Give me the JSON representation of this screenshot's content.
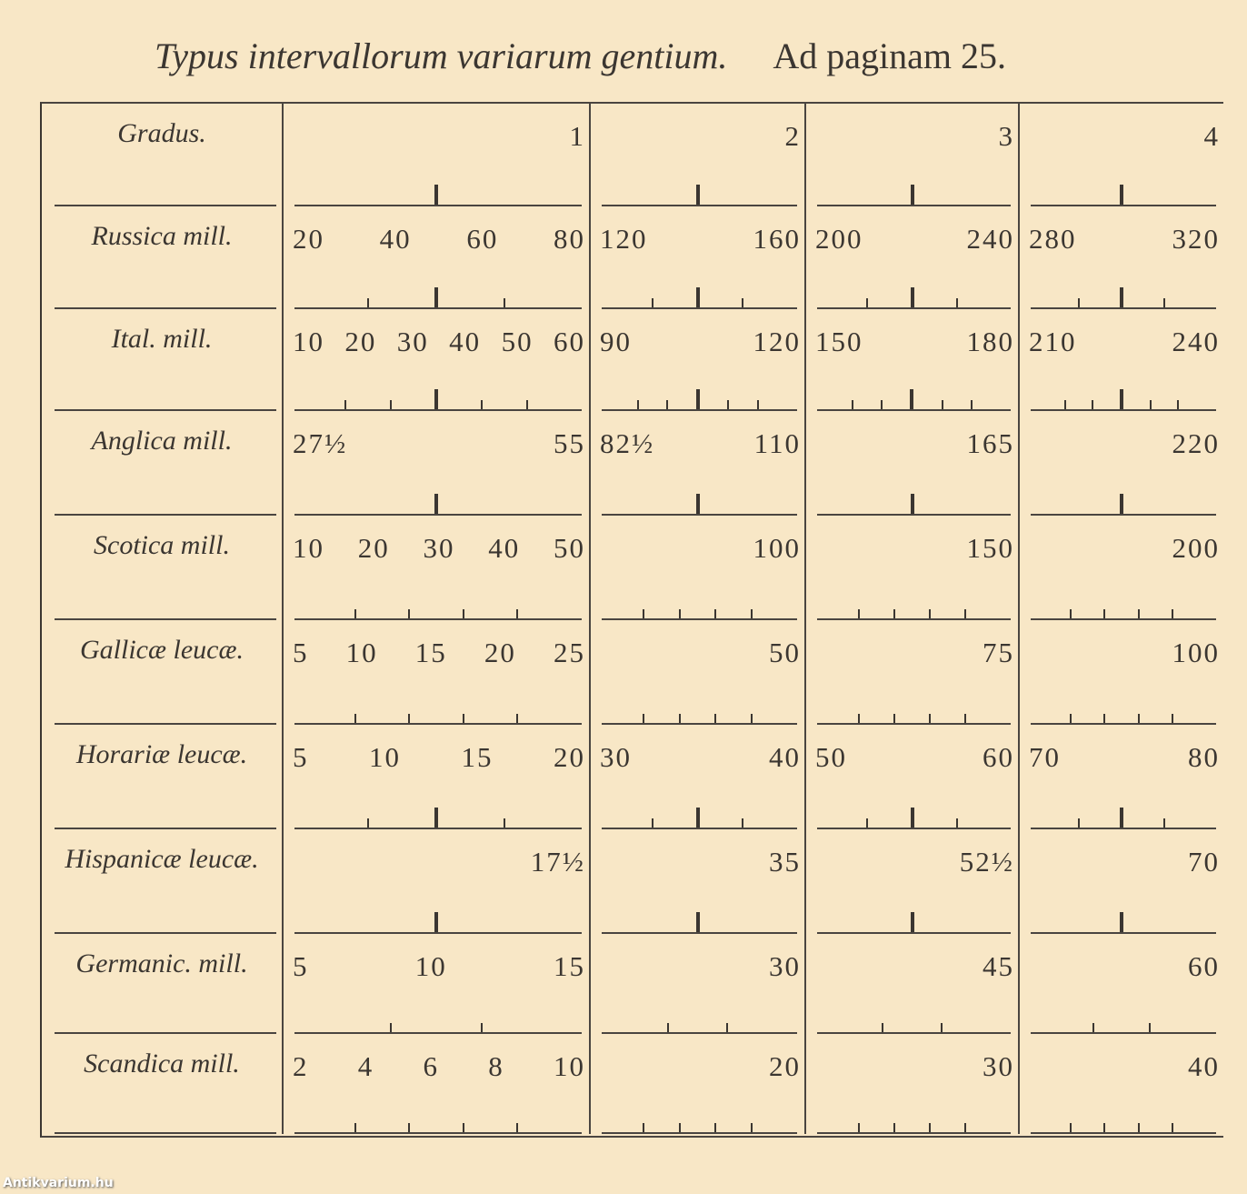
{
  "title": {
    "italic": "Typus intervallorum variarum gentium.",
    "roman": "Ad paginam 25."
  },
  "header": {
    "label": "Gradus.",
    "columns": [
      "1",
      "2",
      "3",
      "4"
    ],
    "ticks": [
      "M",
      "M",
      "M",
      "M"
    ]
  },
  "rows": [
    {
      "label": "Russica mill.",
      "cells": [
        [
          "20",
          "40",
          "60",
          "80"
        ],
        [
          "120",
          "160"
        ],
        [
          "200",
          "240"
        ],
        [
          "280",
          "320"
        ]
      ],
      "ticks": [
        "sMs",
        "sMs",
        "sMs",
        "sMs"
      ]
    },
    {
      "label": "Ital. mill.",
      "cells": [
        [
          "10",
          "20",
          "30",
          "40",
          "50",
          "60"
        ],
        [
          "90",
          "120"
        ],
        [
          "150",
          "180"
        ],
        [
          "210",
          "240"
        ]
      ],
      "ticks": [
        "ssMss",
        "ssMss",
        "ssMss",
        "ssMss"
      ]
    },
    {
      "label": "Anglica mill.",
      "cells": [
        [
          "27½",
          "55"
        ],
        [
          "82½",
          "110"
        ],
        [
          "165"
        ],
        [
          "220"
        ]
      ],
      "ticks": [
        "M",
        "M",
        "M",
        "M"
      ]
    },
    {
      "label": "Scotica mill.",
      "cells": [
        [
          "10",
          "20",
          "30",
          "40",
          "50"
        ],
        [
          "100"
        ],
        [
          "150"
        ],
        [
          "200"
        ]
      ],
      "ticks": [
        "ssss",
        "ssss",
        "ssss",
        "ssss"
      ]
    },
    {
      "label": "Gallicæ leucæ.",
      "cells": [
        [
          "5",
          "10",
          "15",
          "20",
          "25"
        ],
        [
          "50"
        ],
        [
          "75"
        ],
        [
          "100"
        ]
      ],
      "ticks": [
        "ssss",
        "ssss",
        "ssss",
        "ssss"
      ]
    },
    {
      "label": "Horariæ leucæ.",
      "cells": [
        [
          "5",
          "10",
          "15",
          "20"
        ],
        [
          "30",
          "40"
        ],
        [
          "50",
          "60"
        ],
        [
          "70",
          "80"
        ]
      ],
      "ticks": [
        "sMs",
        "sMs",
        "sMs",
        "sMs"
      ]
    },
    {
      "label": "Hispanicæ leucæ.",
      "cells": [
        [
          "17½"
        ],
        [
          "35"
        ],
        [
          "52½"
        ],
        [
          "70"
        ]
      ],
      "ticks": [
        "M",
        "M",
        "M",
        "M"
      ]
    },
    {
      "label": "Germanic. mill.",
      "cells": [
        [
          "5",
          "10",
          "15"
        ],
        [
          "30"
        ],
        [
          "45"
        ],
        [
          "60"
        ]
      ],
      "ticks": [
        "ss",
        "ss",
        "ss",
        "ss"
      ]
    },
    {
      "label": "Scandica mill.",
      "cells": [
        [
          "2",
          "4",
          "6",
          "8",
          "10"
        ],
        [
          "20"
        ],
        [
          "30"
        ],
        [
          "40"
        ]
      ],
      "ticks": [
        "ssss",
        "ssss",
        "ssss",
        "ssss"
      ]
    }
  ],
  "watermark": "Antikvarium.hu"
}
